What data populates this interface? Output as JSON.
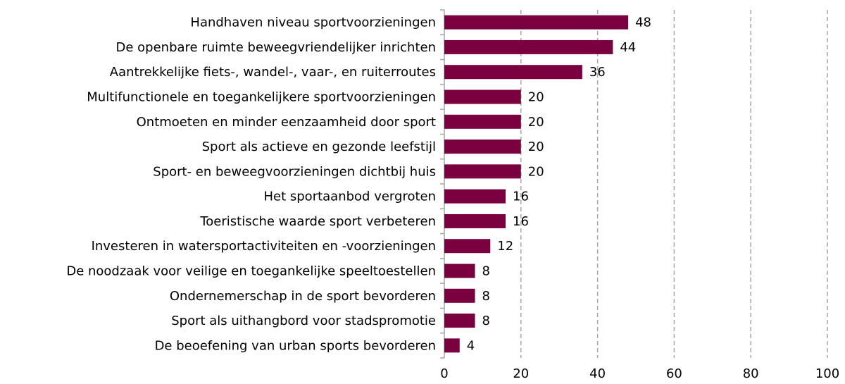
{
  "chart_data": {
    "type": "hbar",
    "categories": [
      "Handhaven niveau sportvoorzieningen",
      "De openbare ruimte beweegvriendelijker inrichten",
      "Aantrekkelijke fiets-, wandel-, vaar-, en ruiterroutes",
      "Multifunctionele en toegankelijkere sportvoorzieningen",
      "Ontmoeten en minder eenzaamheid door sport",
      "Sport als actieve en gezonde leefstijl",
      "Sport- en beweegvoorzieningen dichtbij huis",
      "Het sportaanbod vergroten",
      "Toeristische waarde sport verbeteren",
      "Investeren in watersportactiviteiten en -voorzieningen",
      "De noodzaak voor veilige en toegankelijke speeltoestellen",
      "Ondernemerschap in de sport bevorderen",
      "Sport als uithangbord voor stadspromotie",
      "De beoefening van urban sports bevorderen"
    ],
    "values": [
      48,
      44,
      36,
      20,
      20,
      20,
      20,
      16,
      16,
      12,
      8,
      8,
      8,
      4
    ],
    "color": "#7a003f",
    "xlim": [
      0,
      100
    ],
    "xticks": [
      0,
      20,
      40,
      60,
      80,
      100
    ],
    "grid": true
  }
}
